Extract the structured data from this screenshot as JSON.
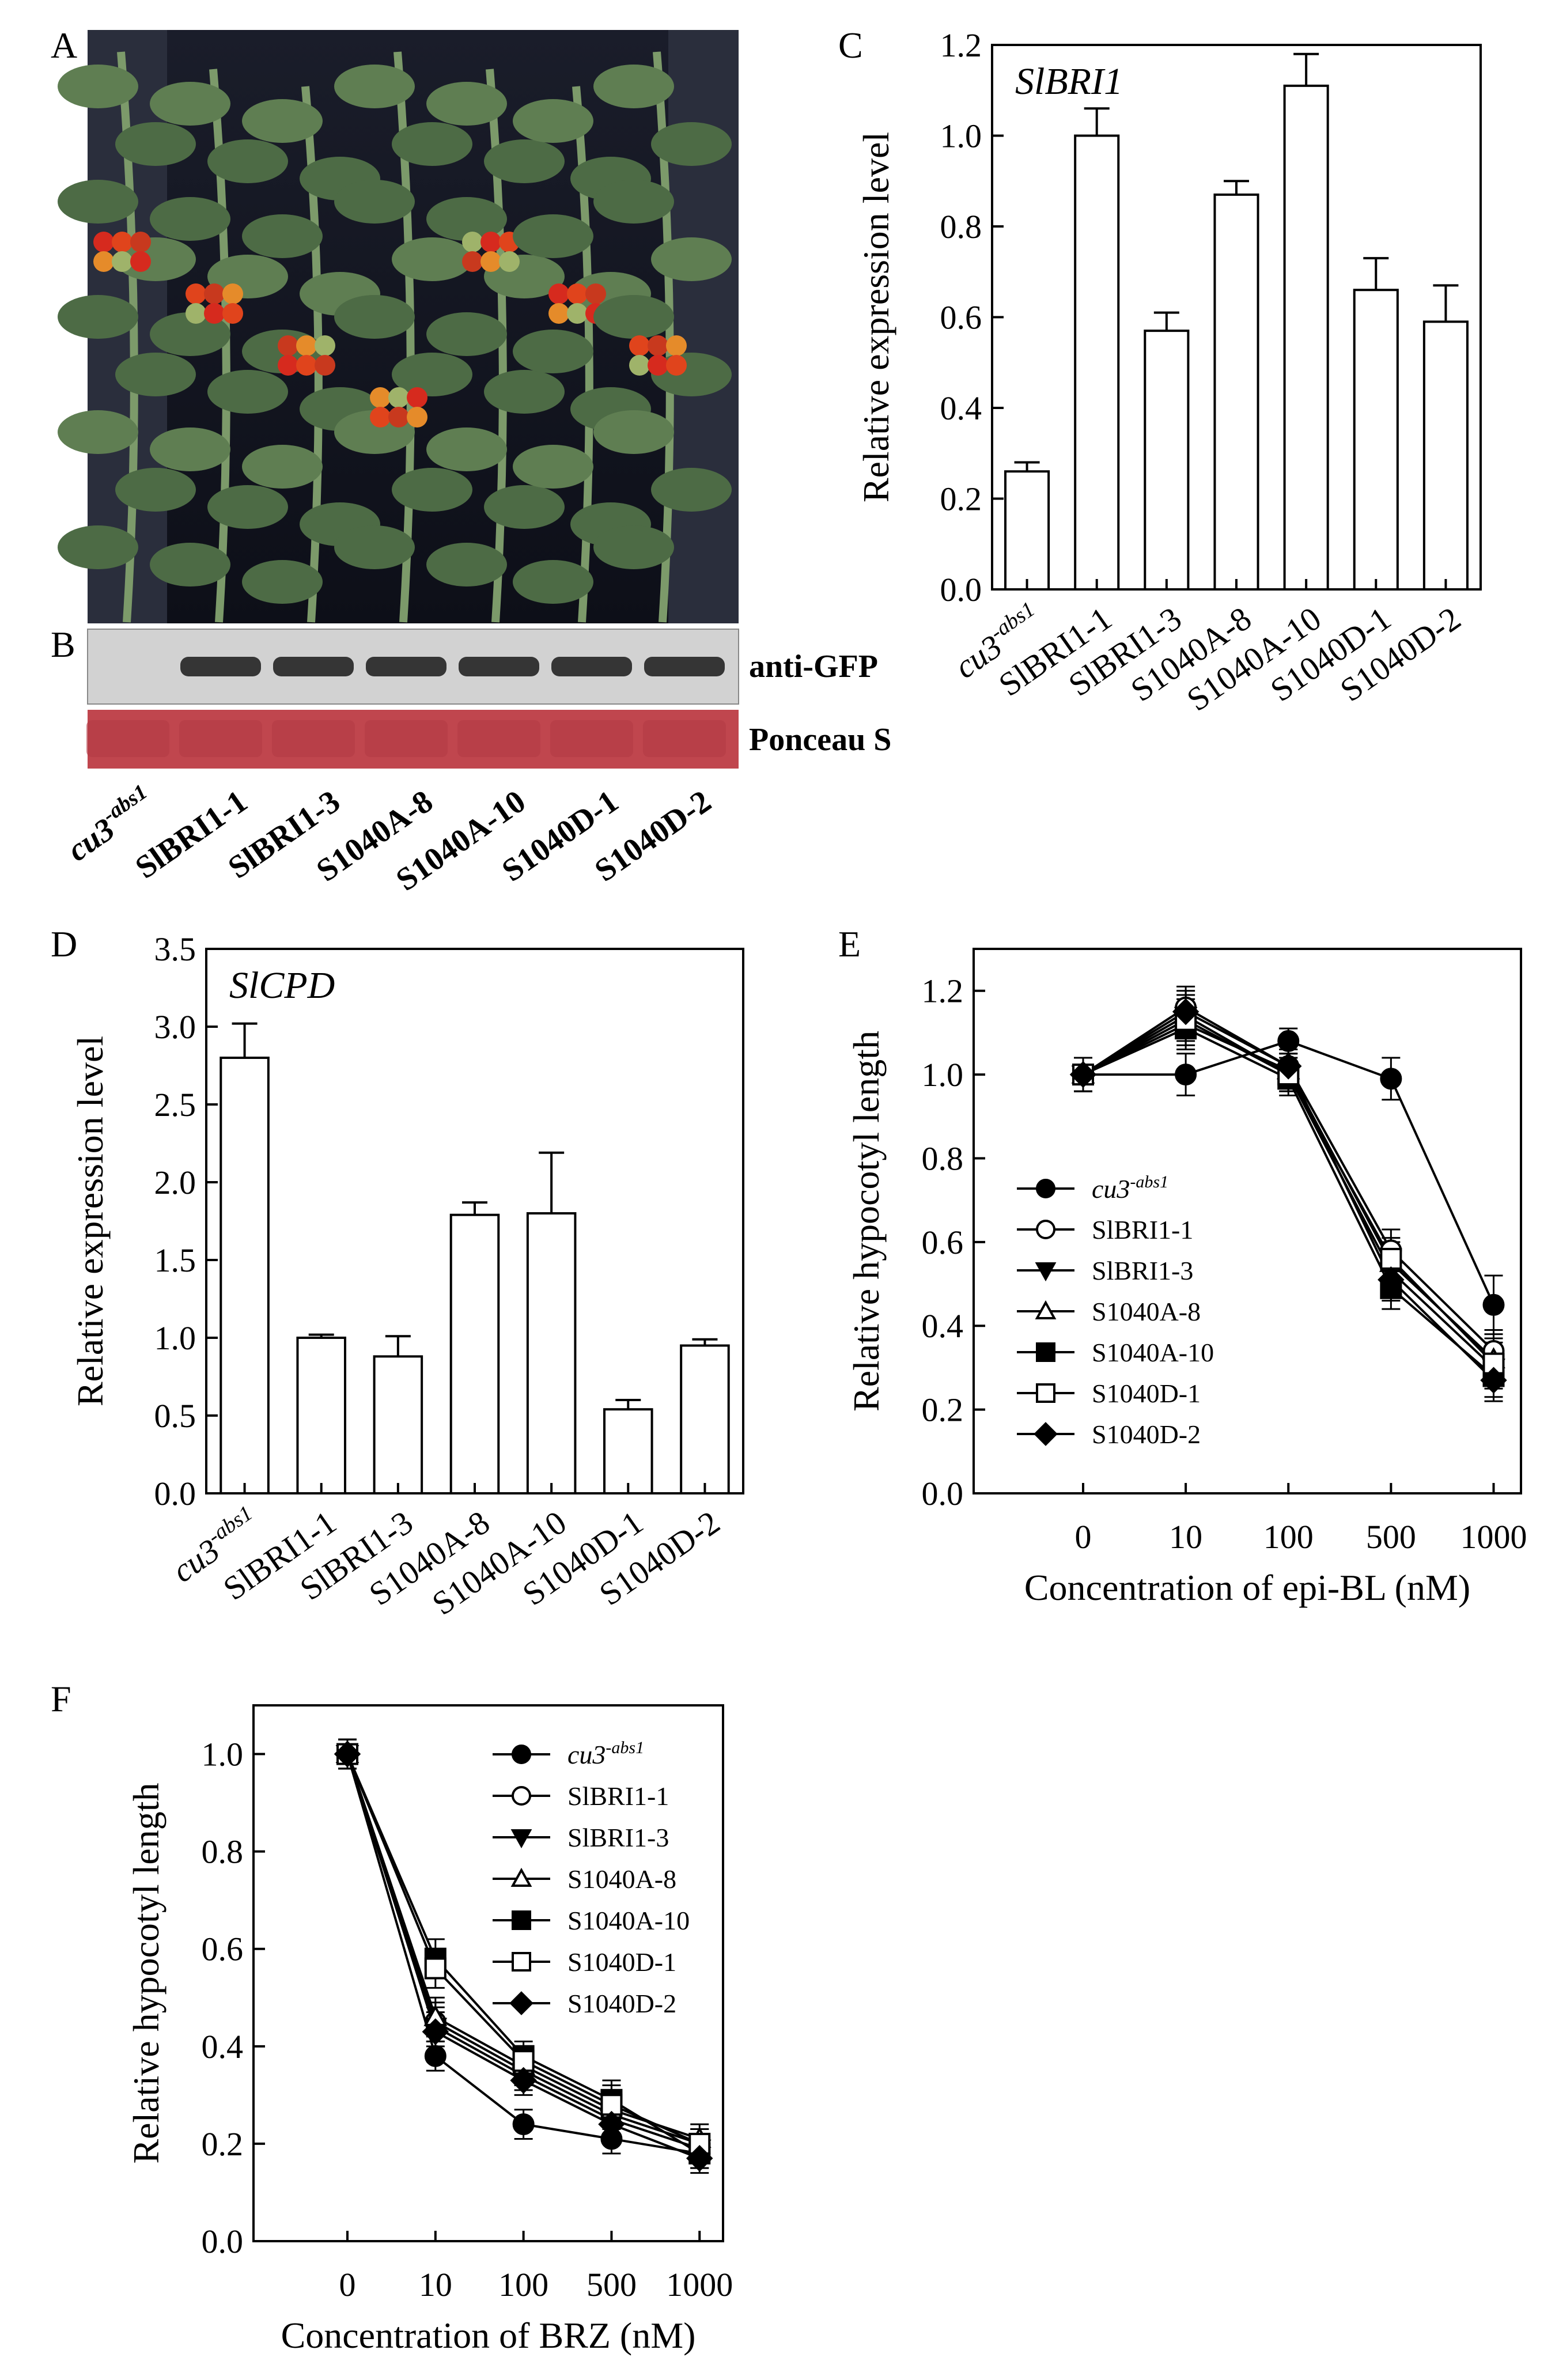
{
  "panel_labels": {
    "a": "A",
    "b": "B",
    "c": "C",
    "d": "D",
    "e": "E",
    "f": "F"
  },
  "photo": {
    "description_icon": "tomato-plants-photo"
  },
  "blot": {
    "band_labels": [
      "anti-GFP",
      "Ponceau S"
    ],
    "lanes": [
      "cu3-abs1",
      "SlBRI1-1",
      "SlBRI1-3",
      "S1040A-8",
      "S1040A-10",
      "S1040D-1",
      "S1040D-2"
    ],
    "lane_main": "cu3",
    "lane_sup": "-abs1",
    "colors": {
      "blot_bg": "#d4d4d4",
      "band": "#1a1a1a",
      "ponceau": "#c0464e"
    }
  },
  "chart_data": [
    {
      "id": "C",
      "type": "bar",
      "gene": "SlBRI1",
      "ylabel": "Relative expression level",
      "xlabel": "",
      "ylim": [
        0,
        1.2
      ],
      "yticks": [
        0.0,
        0.2,
        0.4,
        0.6,
        0.8,
        1.0,
        1.2
      ],
      "ytick_labels": [
        "0.0",
        "0.2",
        "0.4",
        "0.6",
        "0.8",
        "1.0",
        "1.2"
      ],
      "categories": [
        "cu3-abs1",
        "SlBRI1-1",
        "SlBRI1-3",
        "S1040A-8",
        "S1040A-10",
        "S1040D-1",
        "S1040D-2"
      ],
      "values": [
        0.26,
        1.0,
        0.57,
        0.87,
        1.11,
        0.66,
        0.59
      ],
      "errors": [
        0.02,
        0.06,
        0.04,
        0.03,
        0.07,
        0.07,
        0.08
      ]
    },
    {
      "id": "D",
      "type": "bar",
      "gene": "SlCPD",
      "ylabel": "Relative expression level",
      "xlabel": "",
      "ylim": [
        0,
        3.5
      ],
      "yticks": [
        0.0,
        0.5,
        1.0,
        1.5,
        2.0,
        2.5,
        3.0,
        3.5
      ],
      "ytick_labels": [
        "0.0",
        "0.5",
        "1.0",
        "1.5",
        "2.0",
        "2.5",
        "3.0",
        "3.5"
      ],
      "categories": [
        "cu3-abs1",
        "SlBRI1-1",
        "SlBRI1-3",
        "S1040A-8",
        "S1040A-10",
        "S1040D-1",
        "S1040D-2"
      ],
      "values": [
        2.8,
        1.0,
        0.88,
        1.79,
        1.8,
        0.54,
        0.95
      ],
      "errors": [
        0.22,
        0.02,
        0.13,
        0.08,
        0.39,
        0.06,
        0.04
      ]
    },
    {
      "id": "E",
      "type": "line",
      "ylabel": "Relative hypocotyl length",
      "xlabel": "Concentration of epi-BL (nM)",
      "x": [
        "0",
        "10",
        "100",
        "500",
        "1000"
      ],
      "ylim": [
        0,
        1.3
      ],
      "yticks": [
        0.0,
        0.2,
        0.4,
        0.6,
        0.8,
        1.0,
        1.2
      ],
      "ytick_labels": [
        "0.0",
        "0.2",
        "0.4",
        "0.6",
        "0.8",
        "1.0",
        "1.2"
      ],
      "legend_position": "left-center",
      "series": [
        {
          "name": "cu3-abs1",
          "marker": "circle-filled",
          "values": [
            1.0,
            1.0,
            1.08,
            0.99,
            0.45
          ],
          "errors": [
            0.04,
            0.05,
            0.03,
            0.05,
            0.07
          ]
        },
        {
          "name": "SlBRI1-1",
          "marker": "circle-open",
          "values": [
            1.0,
            1.16,
            1.02,
            0.58,
            0.34
          ],
          "errors": [
            0.04,
            0.05,
            0.04,
            0.05,
            0.05
          ]
        },
        {
          "name": "SlBRI1-3",
          "marker": "triangle-down-filled",
          "values": [
            1.0,
            1.14,
            1.0,
            0.53,
            0.3
          ],
          "errors": [
            0.04,
            0.05,
            0.04,
            0.05,
            0.05
          ]
        },
        {
          "name": "S1040A-8",
          "marker": "triangle-up-open",
          "values": [
            1.0,
            1.12,
            1.01,
            0.55,
            0.32
          ],
          "errors": [
            0.04,
            0.05,
            0.04,
            0.05,
            0.05
          ]
        },
        {
          "name": "S1040A-10",
          "marker": "square-filled",
          "values": [
            1.0,
            1.11,
            0.99,
            0.49,
            0.28
          ],
          "errors": [
            0.04,
            0.05,
            0.04,
            0.05,
            0.05
          ]
        },
        {
          "name": "S1040D-1",
          "marker": "square-open",
          "values": [
            1.0,
            1.13,
            1.0,
            0.56,
            0.31
          ],
          "errors": [
            0.04,
            0.05,
            0.04,
            0.05,
            0.05
          ]
        },
        {
          "name": "S1040D-2",
          "marker": "diamond-filled",
          "values": [
            1.0,
            1.15,
            1.02,
            0.51,
            0.27
          ],
          "errors": [
            0.04,
            0.05,
            0.04,
            0.05,
            0.05
          ]
        }
      ]
    },
    {
      "id": "F",
      "type": "line",
      "ylabel": "Relative hypocotyl length",
      "xlabel": "Concentration of BRZ (nM)",
      "x": [
        "0",
        "10",
        "100",
        "500",
        "1000"
      ],
      "ylim": [
        0,
        1.1
      ],
      "yticks": [
        0.0,
        0.2,
        0.4,
        0.6,
        0.8,
        1.0
      ],
      "ytick_labels": [
        "0.0",
        "0.2",
        "0.4",
        "0.6",
        "0.8",
        "1.0"
      ],
      "legend_position": "top-right",
      "series": [
        {
          "name": "cu3-abs1",
          "marker": "circle-filled",
          "values": [
            1.0,
            0.38,
            0.24,
            0.21,
            0.18
          ],
          "errors": [
            0.03,
            0.03,
            0.03,
            0.03,
            0.03
          ]
        },
        {
          "name": "SlBRI1-1",
          "marker": "circle-open",
          "values": [
            1.0,
            0.45,
            0.35,
            0.26,
            0.2
          ],
          "errors": [
            0.03,
            0.04,
            0.03,
            0.04,
            0.03
          ]
        },
        {
          "name": "SlBRI1-3",
          "marker": "triangle-down-filled",
          "values": [
            1.0,
            0.44,
            0.34,
            0.25,
            0.19
          ],
          "errors": [
            0.03,
            0.04,
            0.03,
            0.04,
            0.03
          ]
        },
        {
          "name": "S1040A-8",
          "marker": "triangle-up-open",
          "values": [
            1.0,
            0.46,
            0.36,
            0.27,
            0.21
          ],
          "errors": [
            0.03,
            0.04,
            0.03,
            0.04,
            0.03
          ]
        },
        {
          "name": "S1040A-10",
          "marker": "square-filled",
          "values": [
            1.0,
            0.58,
            0.38,
            0.29,
            0.18
          ],
          "errors": [
            0.03,
            0.04,
            0.03,
            0.04,
            0.03
          ]
        },
        {
          "name": "S1040D-1",
          "marker": "square-open",
          "values": [
            1.0,
            0.56,
            0.37,
            0.28,
            0.2
          ],
          "errors": [
            0.03,
            0.04,
            0.03,
            0.04,
            0.03
          ]
        },
        {
          "name": "S1040D-2",
          "marker": "diamond-filled",
          "values": [
            1.0,
            0.43,
            0.33,
            0.24,
            0.17
          ],
          "errors": [
            0.03,
            0.04,
            0.03,
            0.04,
            0.03
          ]
        }
      ]
    }
  ]
}
